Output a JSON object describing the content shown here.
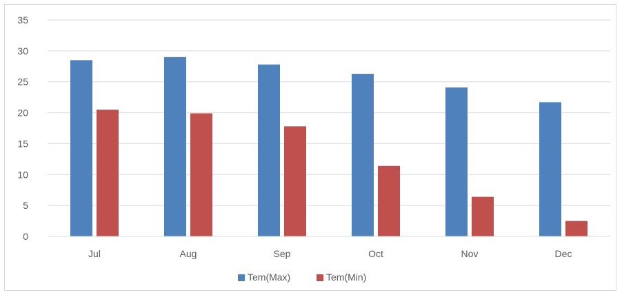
{
  "chart_data": {
    "type": "bar",
    "title": "",
    "xlabel": "",
    "ylabel": "",
    "categories": [
      "Jul",
      "Aug",
      "Sep",
      "Oct",
      "Nov",
      "Dec"
    ],
    "series": [
      {
        "name": "Tem(Max)",
        "color": "#4f81bd",
        "values": [
          28.5,
          29.0,
          27.8,
          26.3,
          24.1,
          21.7
        ]
      },
      {
        "name": "Tem(Min)",
        "color": "#c0504d",
        "values": [
          20.5,
          19.9,
          17.8,
          11.4,
          6.4,
          2.5
        ]
      }
    ],
    "ylim": [
      0,
      35
    ],
    "yticks": [
      "0",
      "5",
      "10",
      "15",
      "20",
      "25",
      "30",
      "35"
    ],
    "grid": true,
    "legend_position": "bottom"
  }
}
